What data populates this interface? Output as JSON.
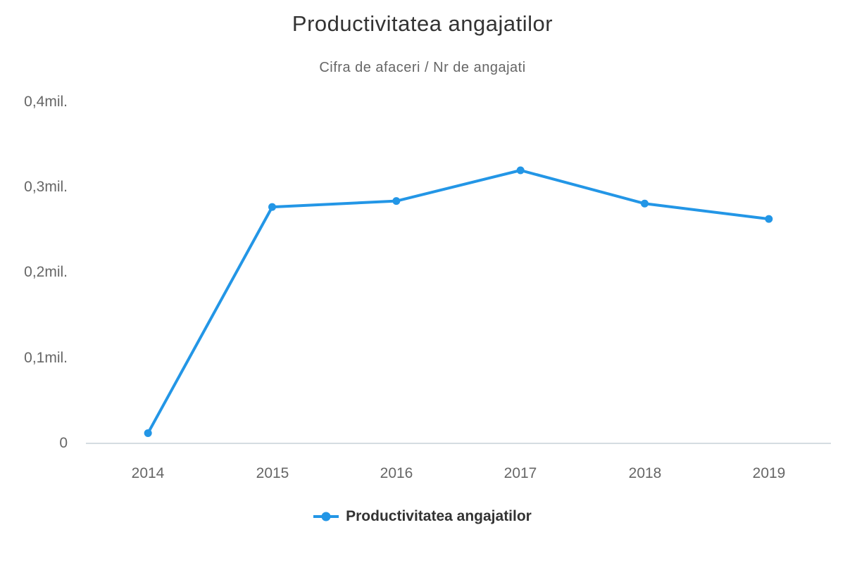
{
  "chart": {
    "title": "Productivitatea angajatilor",
    "subtitle": "Cifra de afaceri / Nr de angajati"
  },
  "legend": {
    "label": "Productivitatea angajatilor"
  },
  "colors": {
    "series": "#2396e6",
    "title": "#333333",
    "subtitle": "#666666",
    "axis_label": "#666666",
    "axis_line": "#d5dce1"
  },
  "chart_data": {
    "type": "line",
    "title": "Productivitatea angajatilor",
    "subtitle": "Cifra de afaceri / Nr de angajati",
    "categories": [
      "2014",
      "2015",
      "2016",
      "2017",
      "2018",
      "2019"
    ],
    "series": [
      {
        "name": "Productivitatea angajatilor",
        "values": [
          0.012,
          0.277,
          0.284,
          0.32,
          0.281,
          0.263
        ]
      }
    ],
    "unit": "mil.",
    "xlabel": "",
    "ylabel": "",
    "ylim": [
      0,
      0.4
    ],
    "ytick_labels_top_to_bottom": [
      "0,4mil.",
      "0,3mil.",
      "0,2mil.",
      "0,1mil.",
      "0"
    ],
    "grid": false,
    "markers": true,
    "legend_position": "bottom"
  }
}
